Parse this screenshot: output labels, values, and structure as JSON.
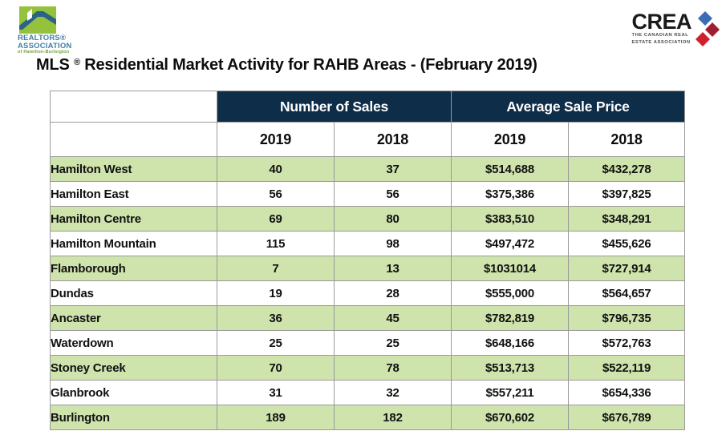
{
  "logos": {
    "rahb": {
      "line1": "REALTORS®",
      "line2": "ASSOCIATION",
      "line3": "of Hamilton-Burlington",
      "colors": {
        "square_green": "#95c23d",
        "roof_blue": "#2a6288",
        "text_blue": "#417fa5",
        "text_green": "#6fa13c"
      }
    },
    "crea": {
      "name": "CREA",
      "sub_line1": "THE CANADIAN REAL",
      "sub_line2": "ESTATE ASSOCIATION",
      "colors": {
        "diamond_blue": "#3b6cb4",
        "diamond_maroon": "#a11d33",
        "diamond_red": "#d0202e"
      }
    }
  },
  "title": {
    "prefix": "MLS",
    "reg": "®",
    "rest": " Residential Market Activity for RAHB Areas - (February 2019)"
  },
  "table": {
    "group_headers": [
      "Number of Sales",
      "Average Sale Price"
    ],
    "year_headers": [
      "2019",
      "2018",
      "2019",
      "2018"
    ],
    "rows": [
      {
        "area": "Hamilton West",
        "sales_2019": "40",
        "sales_2018": "37",
        "price_2019": "$514,688",
        "price_2018": "$432,278"
      },
      {
        "area": "Hamilton East",
        "sales_2019": "56",
        "sales_2018": "56",
        "price_2019": "$375,386",
        "price_2018": "$397,825"
      },
      {
        "area": "Hamilton Centre",
        "sales_2019": "69",
        "sales_2018": "80",
        "price_2019": "$383,510",
        "price_2018": "$348,291"
      },
      {
        "area": "Hamilton Mountain",
        "sales_2019": "115",
        "sales_2018": "98",
        "price_2019": "$497,472",
        "price_2018": "$455,626"
      },
      {
        "area": "Flamborough",
        "sales_2019": "7",
        "sales_2018": "13",
        "price_2019": "$1031014",
        "price_2018": "$727,914"
      },
      {
        "area": "Dundas",
        "sales_2019": "19",
        "sales_2018": "28",
        "price_2019": "$555,000",
        "price_2018": "$564,657"
      },
      {
        "area": "Ancaster",
        "sales_2019": "36",
        "sales_2018": "45",
        "price_2019": "$782,819",
        "price_2018": "$796,735"
      },
      {
        "area": "Waterdown",
        "sales_2019": "25",
        "sales_2018": "25",
        "price_2019": "$648,166",
        "price_2018": "$572,763"
      },
      {
        "area": "Stoney Creek",
        "sales_2019": "70",
        "sales_2018": "78",
        "price_2019": "$513,713",
        "price_2018": "$522,119"
      },
      {
        "area": "Glanbrook",
        "sales_2019": "31",
        "sales_2018": "32",
        "price_2019": "$557,211",
        "price_2018": "$654,336"
      },
      {
        "area": "Burlington",
        "sales_2019": "189",
        "sales_2018": "182",
        "price_2019": "$670,602",
        "price_2018": "$676,789"
      }
    ]
  },
  "colors": {
    "header_navy": "#0e2d49",
    "row_green": "#cfe3ac",
    "row_white": "#ffffff",
    "border_gray": "#9a9a9a",
    "text_dark": "#111111"
  }
}
